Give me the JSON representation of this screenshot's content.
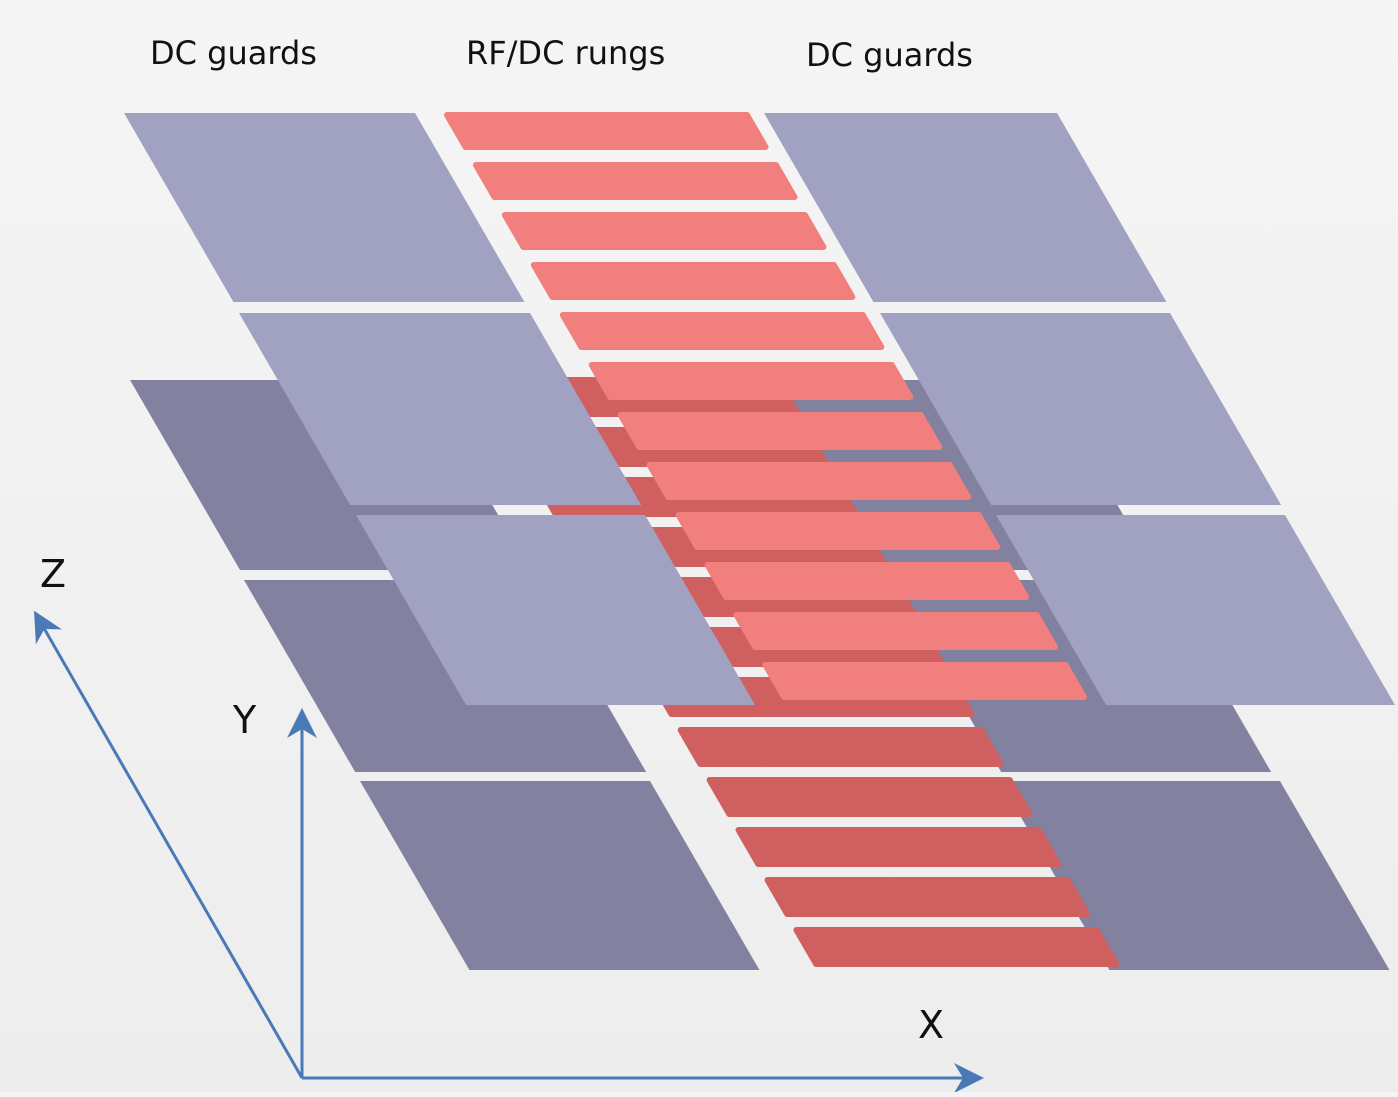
{
  "labels": {
    "left_guards": "DC guards",
    "center_rungs": "RF/DC rungs",
    "right_guards": "DC guards"
  },
  "axes": {
    "x": "X",
    "y": "Y",
    "z": "Z"
  },
  "colors": {
    "guard_front": "#a1a1c1",
    "guard_back": "#8282a0",
    "rung_front": "#f07f7e",
    "rung_back": "#d06060",
    "axis": "#4a7ab5",
    "background": "#f4f4f4"
  },
  "layers": {
    "front": {
      "guard_rows": 3,
      "rungs": 12
    },
    "back": {
      "guard_rows": 3,
      "rungs": 12
    }
  }
}
